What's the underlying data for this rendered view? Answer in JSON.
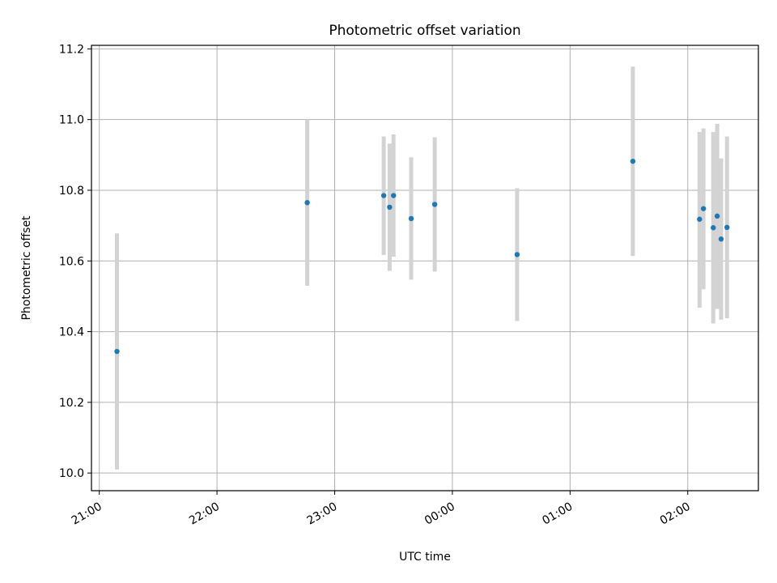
{
  "chart_data": {
    "type": "scatter",
    "title": "Photometric offset variation",
    "xlabel": "UTC time",
    "ylabel": "Photometric offset",
    "grid": true,
    "x_ticks": [
      "21:00",
      "22:00",
      "23:00",
      "00:00",
      "01:00",
      "02:00"
    ],
    "y_ticks": [
      "10.0",
      "10.2",
      "10.4",
      "10.6",
      "10.8",
      "11.0",
      "11.2"
    ],
    "xlim": [
      "20:56",
      "02:36"
    ],
    "ylim": [
      9.95,
      11.21
    ],
    "point_color": "#1f77b4",
    "errorbar_color": "#d3d3d3",
    "points": [
      {
        "t": "21:09",
        "y": 10.344,
        "lo": 10.01,
        "hi": 10.678
      },
      {
        "t": "22:46",
        "y": 10.765,
        "lo": 10.53,
        "hi": 11.0
      },
      {
        "t": "23:25",
        "y": 10.785,
        "lo": 10.617,
        "hi": 10.952
      },
      {
        "t": "23:28",
        "y": 10.752,
        "lo": 10.572,
        "hi": 10.932
      },
      {
        "t": "23:30",
        "y": 10.785,
        "lo": 10.612,
        "hi": 10.958
      },
      {
        "t": "23:39",
        "y": 10.72,
        "lo": 10.547,
        "hi": 10.893
      },
      {
        "t": "23:51",
        "y": 10.76,
        "lo": 10.57,
        "hi": 10.95
      },
      {
        "t": "00:33",
        "y": 10.618,
        "lo": 10.43,
        "hi": 10.806
      },
      {
        "t": "01:32",
        "y": 10.882,
        "lo": 10.614,
        "hi": 11.15
      },
      {
        "t": "02:06",
        "y": 10.718,
        "lo": 10.468,
        "hi": 10.965
      },
      {
        "t": "02:08",
        "y": 10.748,
        "lo": 10.52,
        "hi": 10.975
      },
      {
        "t": "02:13",
        "y": 10.694,
        "lo": 10.423,
        "hi": 10.965
      },
      {
        "t": "02:15",
        "y": 10.727,
        "lo": 10.464,
        "hi": 10.988
      },
      {
        "t": "02:17",
        "y": 10.662,
        "lo": 10.434,
        "hi": 10.89
      },
      {
        "t": "02:20",
        "y": 10.695,
        "lo": 10.438,
        "hi": 10.952
      }
    ]
  }
}
